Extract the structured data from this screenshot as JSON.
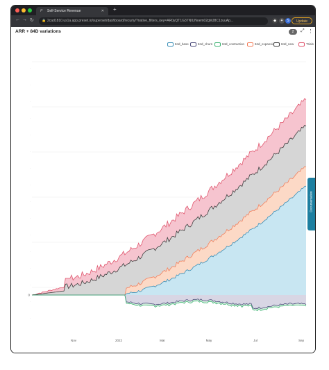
{
  "browser": {
    "tab_title": "Self-Service Revenue",
    "tab_icon": "preset-icon",
    "new_tab_label": "+",
    "url": "2cad1810.us1a.app.preset.io/superset/dashboard/recurly/?native_filters_key=AR0yQT1G37NIUNoem02gMJ8C1zuuAp...",
    "update_label": "Update",
    "profile_initial": "S"
  },
  "dashboard": {
    "chart_title": "ARR + 84D variations",
    "filter_count": "2",
    "documentation_label": "Documentation",
    "help_label": "?"
  },
  "chart_data": {
    "type": "area",
    "series": [
      {
        "name": "84d_base",
        "color": "#3a8fb7",
        "fill": "#c8e6f2"
      },
      {
        "name": "84d_churn",
        "color": "#4a4a7a",
        "fill": "#d8d6e4"
      },
      {
        "name": "84d_contraction",
        "color": "#3cb371",
        "fill": "#d7f0e0"
      },
      {
        "name": "84d_expansion",
        "color": "#f47f5b",
        "fill": "#fcd9c6"
      },
      {
        "name": "84d_new",
        "color": "#3d3d3d",
        "fill": "#d6d6d6"
      },
      {
        "name": "Trials",
        "color": "#e0566e",
        "fill": "#f6c4cf"
      }
    ],
    "x_tick_labels": [
      "Nov",
      "2022",
      "Mar",
      "May",
      "Jul",
      "Sep"
    ],
    "y_tick_labels": [
      "0"
    ],
    "grid": true,
    "legend_position": "top-right"
  }
}
